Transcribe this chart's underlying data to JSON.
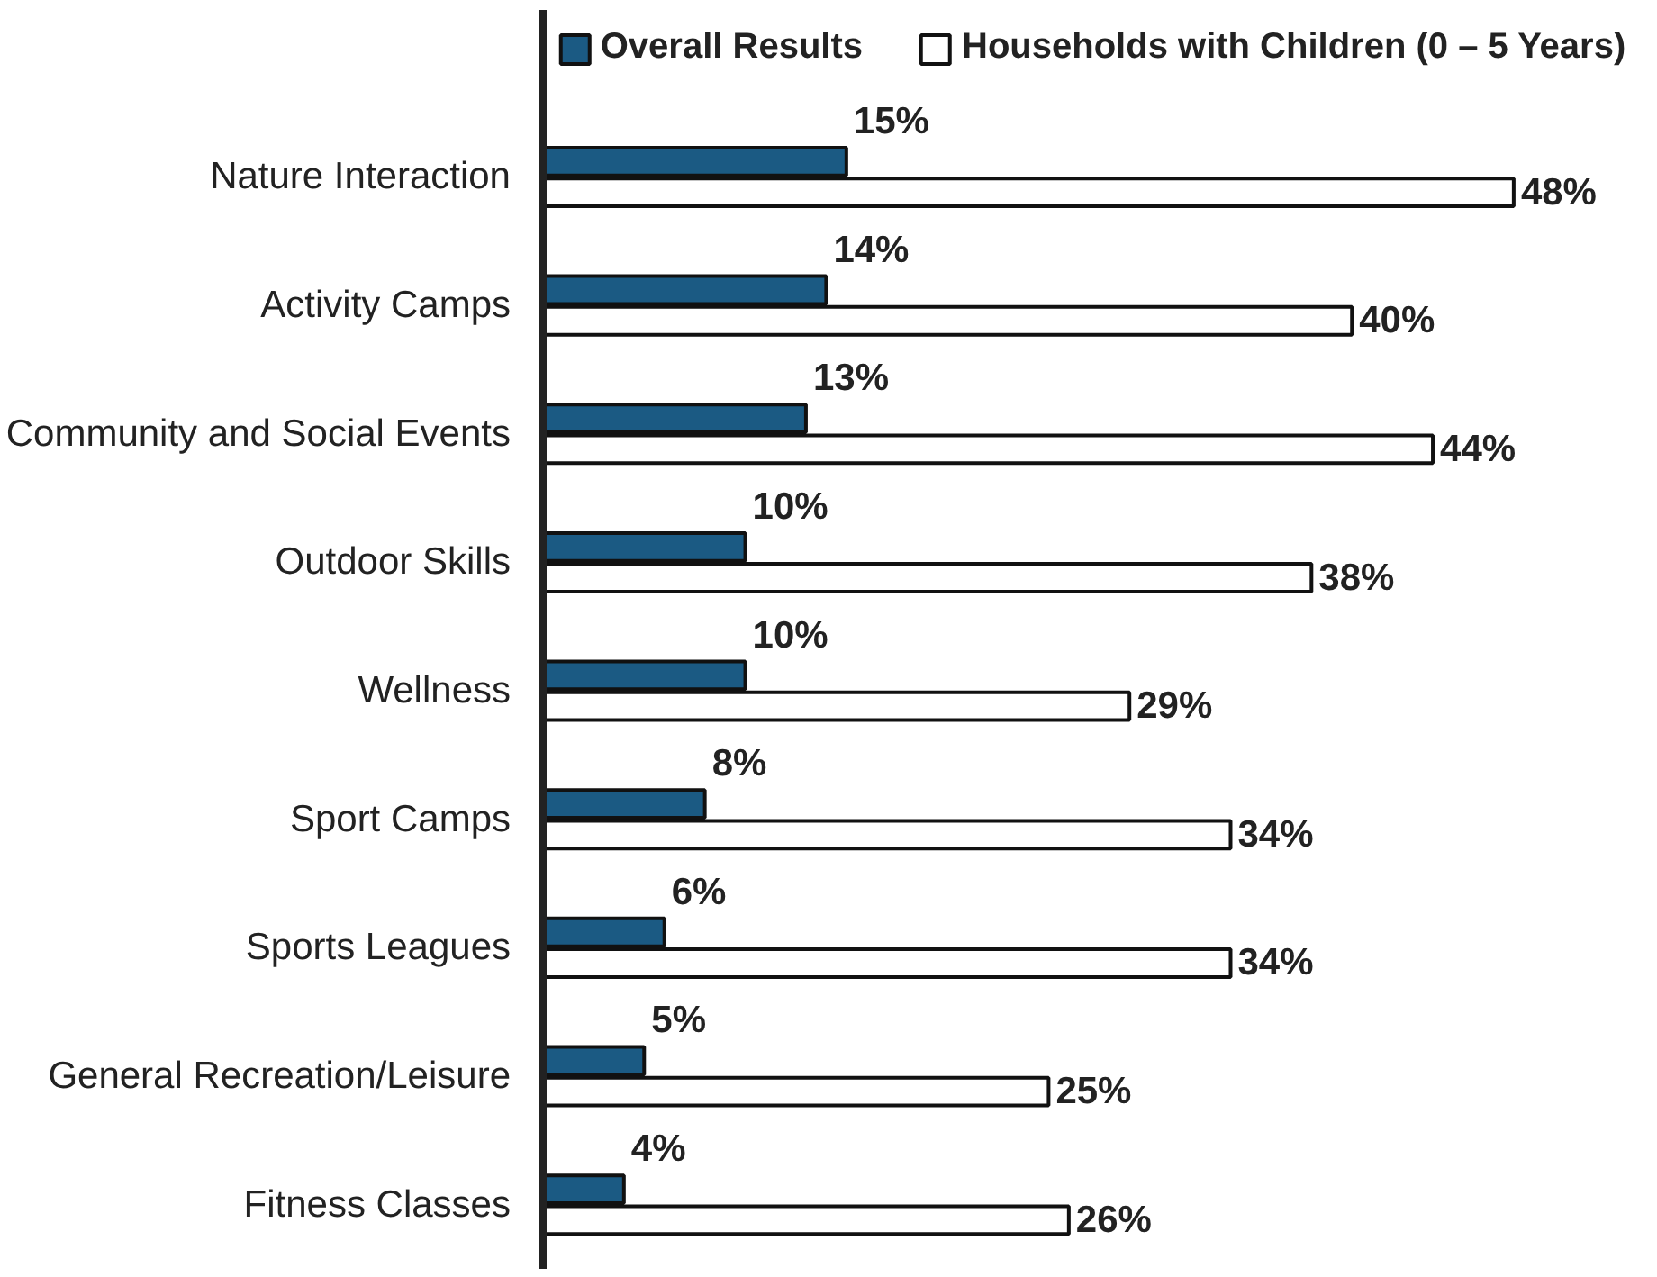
{
  "chart_data": {
    "type": "bar",
    "orientation": "horizontal",
    "legend": "top",
    "grid": false,
    "tick_labels": "y",
    "categories": [
      "Nature Interaction",
      "Activity Camps",
      "Community and Social Events",
      "Outdoor Skills",
      "Wellness",
      "Sport Camps",
      "Sports Leagues",
      "General Recreation/Leisure",
      "Fitness Classes"
    ],
    "series": [
      {
        "name": "Overall Results",
        "color": "#1b5a83",
        "values": [
          15,
          14,
          13,
          10,
          10,
          8,
          6,
          5,
          4
        ],
        "value_labels": [
          "15%",
          "14%",
          "13%",
          "10%",
          "10%",
          "8%",
          "6%",
          "5%",
          "4%"
        ]
      },
      {
        "name": "Households with Children (0 – 5 Years)",
        "color": "#ffffff",
        "values": [
          48,
          40,
          44,
          38,
          29,
          34,
          34,
          25,
          26
        ],
        "value_labels": [
          "48%",
          "40%",
          "44%",
          "38%",
          "29%",
          "34%",
          "34%",
          "25%",
          "26%"
        ]
      }
    ]
  }
}
